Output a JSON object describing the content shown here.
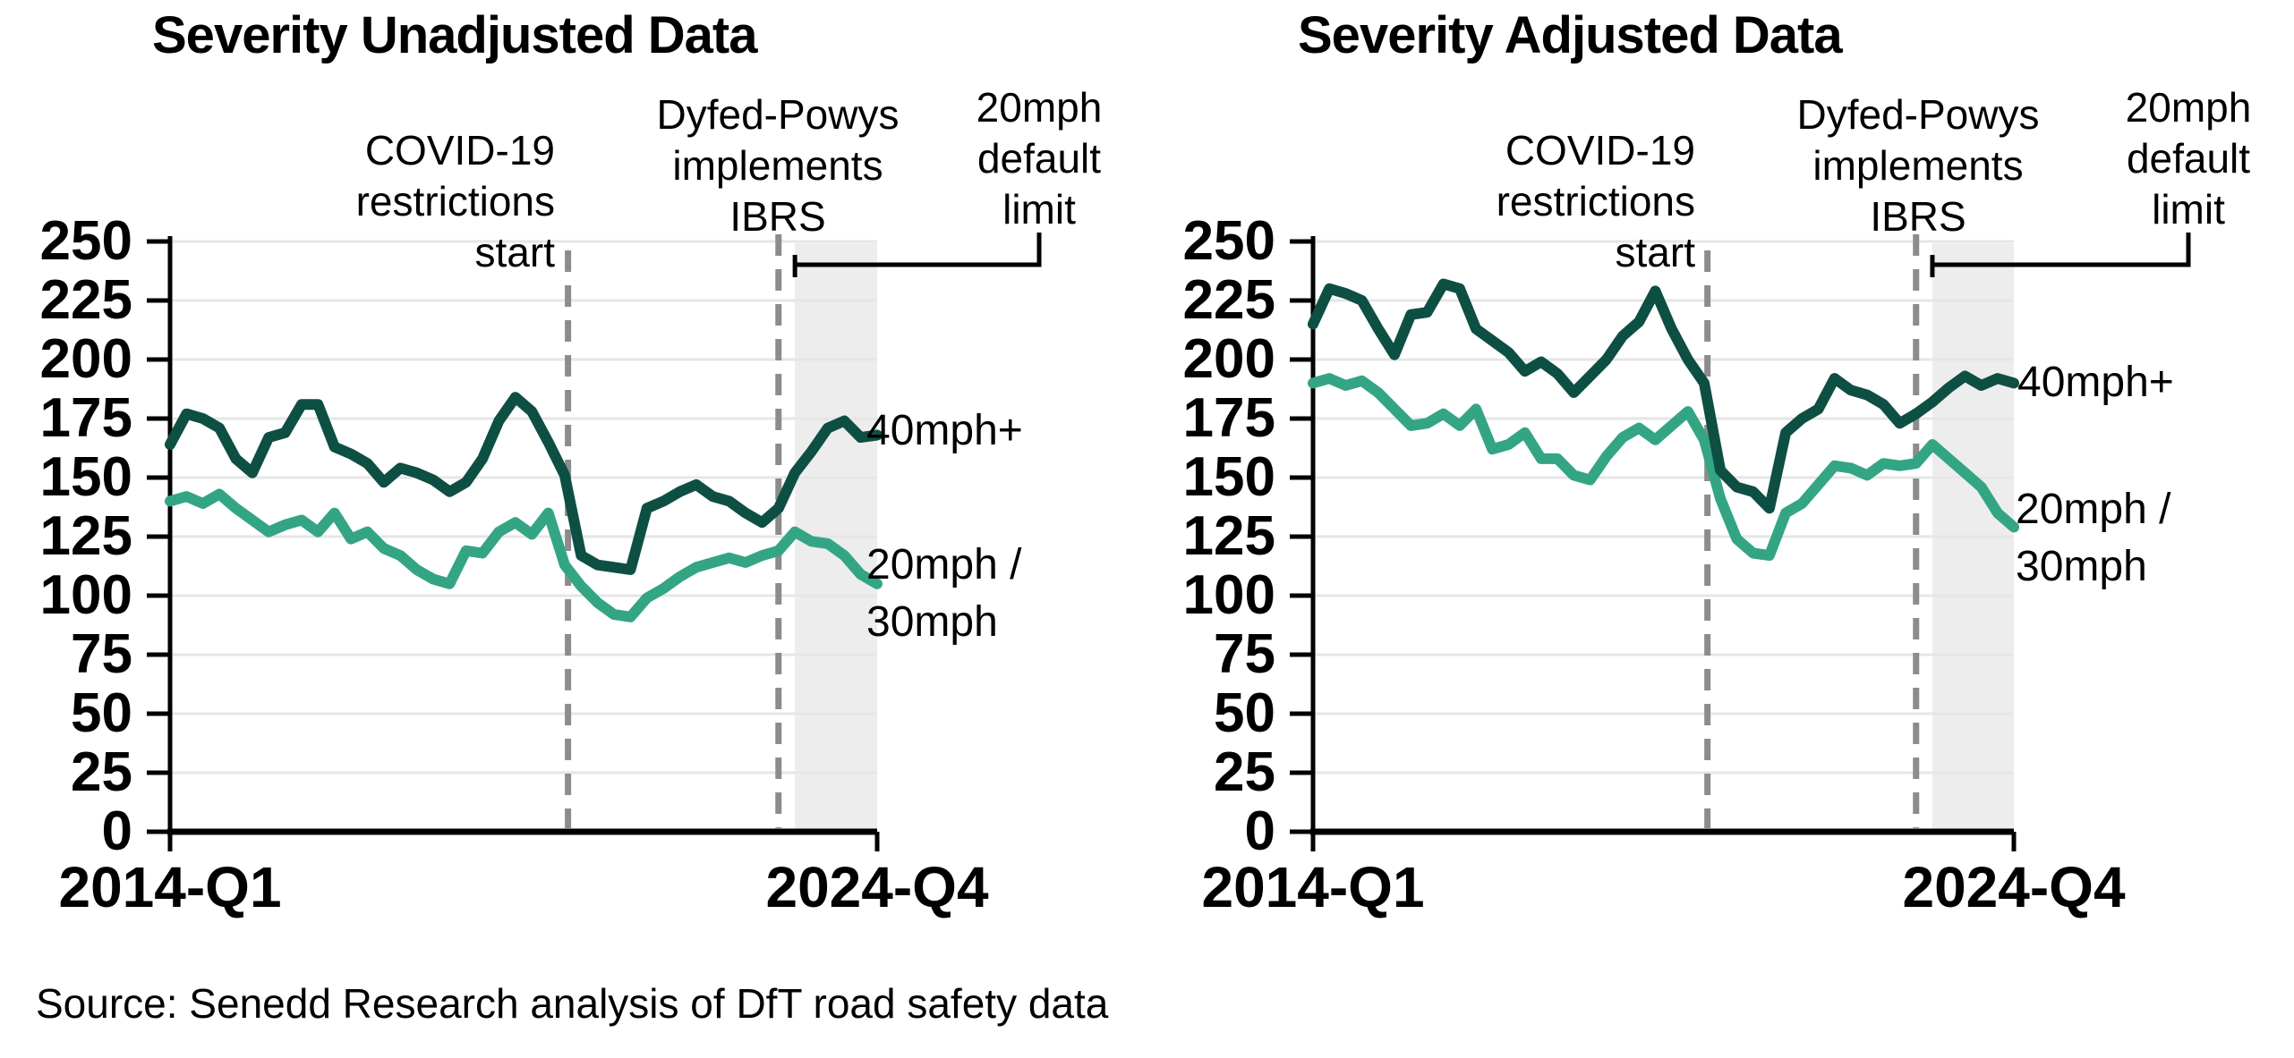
{
  "page": {
    "background": "#ffffff"
  },
  "titles": {
    "left": "Severity Unadjusted Data",
    "right": "Severity Adjusted Data"
  },
  "source_note": "Source: Senedd Research analysis of DfT road safety data",
  "colors": {
    "series_40mph": "#0E4F44",
    "series_20_30mph": "#34A584",
    "dashed_event_line": "#8C8C8C",
    "gridline": "#E6E6E6",
    "shaded_region": "#EDEDED",
    "axis": "#000000",
    "text": "#000000"
  },
  "y_axis": {
    "min": 0,
    "max": 250,
    "step": 25,
    "tick_labels": [
      "250",
      "225",
      "200",
      "175",
      "150",
      "125",
      "100",
      "75",
      "50",
      "25",
      "0"
    ]
  },
  "x_axis": {
    "start_label": "2014-Q1",
    "end_label": "2024-Q4"
  },
  "annotations": {
    "covid": {
      "lines": [
        "COVID-19",
        "restrictions",
        "start"
      ]
    },
    "ibrs": {
      "lines": [
        "Dyfed-Powys",
        "implements",
        "IBRS"
      ]
    },
    "limit20": {
      "lines": [
        "20mph",
        "default",
        "limit"
      ]
    }
  },
  "series_labels": {
    "dark": "40mph+",
    "light_line1": "20mph /",
    "light_line2": "30mph"
  },
  "chart_data": [
    {
      "type": "line",
      "title": "Severity Unadjusted Data",
      "xlabel": "",
      "ylabel": "",
      "ylim": [
        0,
        250
      ],
      "grid": "horizontal",
      "legend_position": "right-of-line-ends",
      "x": [
        "2014-Q1",
        "2014-Q2",
        "2014-Q3",
        "2014-Q4",
        "2015-Q1",
        "2015-Q2",
        "2015-Q3",
        "2015-Q4",
        "2016-Q1",
        "2016-Q2",
        "2016-Q3",
        "2016-Q4",
        "2017-Q1",
        "2017-Q2",
        "2017-Q3",
        "2017-Q4",
        "2018-Q1",
        "2018-Q2",
        "2018-Q3",
        "2018-Q4",
        "2019-Q1",
        "2019-Q2",
        "2019-Q3",
        "2019-Q4",
        "2020-Q1",
        "2020-Q2",
        "2020-Q3",
        "2020-Q4",
        "2021-Q1",
        "2021-Q2",
        "2021-Q3",
        "2021-Q4",
        "2022-Q1",
        "2022-Q2",
        "2022-Q3",
        "2022-Q4",
        "2023-Q1",
        "2023-Q2",
        "2023-Q3",
        "2023-Q4",
        "2024-Q1",
        "2024-Q2",
        "2024-Q3",
        "2024-Q4"
      ],
      "series": [
        {
          "name": "40mph+",
          "color": "#0E4F44",
          "values": [
            164,
            177,
            175,
            171,
            158,
            152,
            167,
            169,
            181,
            181,
            163,
            160,
            156,
            148,
            154,
            152,
            149,
            144,
            148,
            158,
            174,
            184,
            178,
            165,
            151,
            117,
            113,
            112,
            111,
            137,
            140,
            144,
            147,
            142,
            140,
            135,
            131,
            137,
            152,
            161,
            171,
            174,
            167,
            168
          ]
        },
        {
          "name": "20mph / 30mph",
          "color": "#34A584",
          "values": [
            140,
            142,
            139,
            143,
            137,
            132,
            127,
            130,
            132,
            127,
            135,
            124,
            127,
            120,
            117,
            111,
            107,
            105,
            119,
            118,
            127,
            131,
            126,
            135,
            113,
            104,
            97,
            92,
            91,
            99,
            103,
            108,
            112,
            114,
            116,
            114,
            117,
            119,
            127,
            123,
            122,
            117,
            109,
            105
          ]
        }
      ],
      "events": {
        "covid_line_after": "2020-Q1",
        "ibrs_line_at": "2023-Q2",
        "shaded_from": "2023-Q3",
        "shaded_to": "2024-Q4",
        "covid_label": "COVID-19 restrictions start",
        "ibrs_label": "Dyfed-Powys implements IBRS",
        "shaded_label": "20mph default limit"
      }
    },
    {
      "type": "line",
      "title": "Severity Adjusted Data",
      "xlabel": "",
      "ylabel": "",
      "ylim": [
        0,
        250
      ],
      "grid": "horizontal",
      "legend_position": "right-of-line-ends",
      "x": [
        "2014-Q1",
        "2014-Q2",
        "2014-Q3",
        "2014-Q4",
        "2015-Q1",
        "2015-Q2",
        "2015-Q3",
        "2015-Q4",
        "2016-Q1",
        "2016-Q2",
        "2016-Q3",
        "2016-Q4",
        "2017-Q1",
        "2017-Q2",
        "2017-Q3",
        "2017-Q4",
        "2018-Q1",
        "2018-Q2",
        "2018-Q3",
        "2018-Q4",
        "2019-Q1",
        "2019-Q2",
        "2019-Q3",
        "2019-Q4",
        "2020-Q1",
        "2020-Q2",
        "2020-Q3",
        "2020-Q4",
        "2021-Q1",
        "2021-Q2",
        "2021-Q3",
        "2021-Q4",
        "2022-Q1",
        "2022-Q2",
        "2022-Q3",
        "2022-Q4",
        "2023-Q1",
        "2023-Q2",
        "2023-Q3",
        "2023-Q4",
        "2024-Q1",
        "2024-Q2",
        "2024-Q3",
        "2024-Q4"
      ],
      "series": [
        {
          "name": "40mph+",
          "color": "#0E4F44",
          "values": [
            215,
            230,
            228,
            225,
            213,
            202,
            219,
            220,
            232,
            230,
            213,
            208,
            203,
            195,
            199,
            194,
            186,
            193,
            200,
            210,
            216,
            229,
            213,
            200,
            190,
            153,
            146,
            144,
            137,
            169,
            175,
            179,
            192,
            187,
            185,
            181,
            173,
            177,
            182,
            188,
            193,
            189,
            192,
            190
          ]
        },
        {
          "name": "20mph / 30mph",
          "color": "#34A584",
          "values": [
            190,
            192,
            189,
            191,
            186,
            179,
            172,
            173,
            177,
            172,
            179,
            162,
            164,
            169,
            158,
            158,
            151,
            149,
            159,
            167,
            171,
            166,
            172,
            178,
            166,
            141,
            124,
            118,
            117,
            135,
            139,
            147,
            155,
            154,
            151,
            156,
            155,
            156,
            164,
            158,
            152,
            146,
            135,
            129
          ]
        }
      ],
      "events": {
        "covid_line_after": "2020-Q1",
        "ibrs_line_at": "2023-Q2",
        "shaded_from": "2023-Q3",
        "shaded_to": "2024-Q4",
        "covid_label": "COVID-19 restrictions start",
        "ibrs_label": "Dyfed-Powys implements IBRS",
        "shaded_label": "20mph default limit"
      }
    }
  ]
}
